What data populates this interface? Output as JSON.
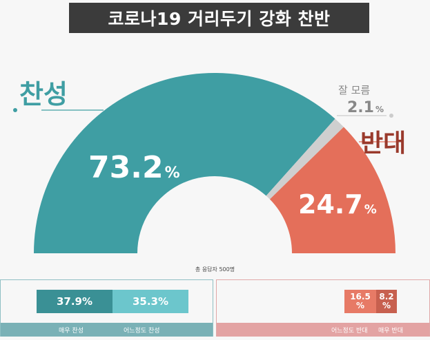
{
  "title": "코로나19 거리두기 강화 찬반",
  "footnote": "총 응답자 500명",
  "labels": {
    "agree": "찬성",
    "disagree": "반대",
    "unknown": "잘 모름"
  },
  "colors": {
    "agree": "#3f9ea3",
    "disagree": "#e46f5a",
    "unknown": "#cfcfcf",
    "agree_text": "#3f9ea3",
    "disagree_text": "#9a3a2c",
    "unknown_text": "#888888"
  },
  "chart_data": {
    "type": "pie",
    "style": "half-donut",
    "title": "코로나19 거리두기 강화 찬반",
    "unit": "%",
    "slices": [
      {
        "label": "찬성",
        "value": 73.2,
        "value_text": "73.2",
        "color": "#3f9ea3"
      },
      {
        "label": "잘 모름",
        "value": 2.1,
        "value_text": "2.1",
        "color": "#cfcfcf"
      },
      {
        "label": "반대",
        "value": 24.7,
        "value_text": "24.7",
        "color": "#e46f5a"
      }
    ],
    "breakdown": {
      "agree": [
        {
          "label": "매우 찬성",
          "value": 37.9,
          "value_text": "37.9%"
        },
        {
          "label": "어느정도 찬성",
          "value": 35.3,
          "value_text": "35.3%"
        }
      ],
      "disagree": [
        {
          "label": "어느정도 반대",
          "value": 16.5,
          "value_text": "16.5"
        },
        {
          "label": "매우 반대",
          "value": 8.2,
          "value_text": "8.2"
        }
      ]
    }
  }
}
